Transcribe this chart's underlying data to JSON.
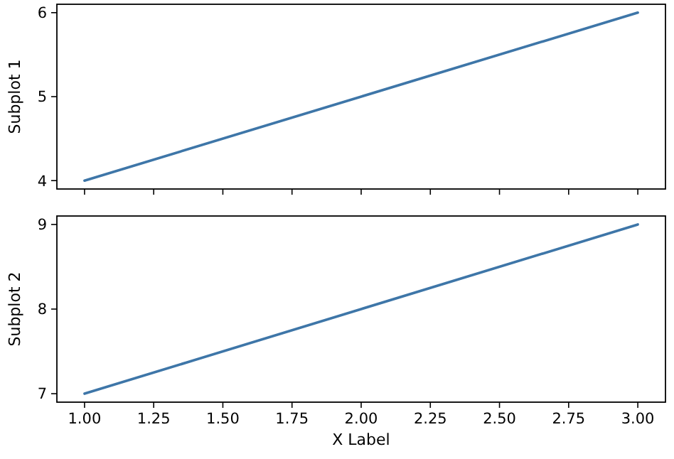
{
  "chart_data": [
    {
      "type": "line",
      "ylabel": "Subplot 1",
      "x": [
        1,
        2,
        3
      ],
      "series": [
        {
          "color": "#3e76a8",
          "values": [
            4,
            5,
            6
          ]
        }
      ],
      "xlim": [
        0.9,
        3.1
      ],
      "ylim": [
        3.9,
        6.1
      ],
      "xticks": [
        {
          "value": 1,
          "label": null
        },
        {
          "value": 1.25,
          "label": null
        },
        {
          "value": 1.5,
          "label": null
        },
        {
          "value": 1.75,
          "label": null
        },
        {
          "value": 2,
          "label": null
        },
        {
          "value": 2.25,
          "label": null
        },
        {
          "value": 2.5,
          "label": null
        },
        {
          "value": 2.75,
          "label": null
        },
        {
          "value": 3,
          "label": null
        }
      ],
      "yticks": [
        4,
        5,
        6
      ],
      "tick_labels": "y"
    },
    {
      "type": "line",
      "ylabel": "Subplot 2",
      "xlabel": "X Label",
      "x": [
        1,
        2,
        3
      ],
      "series": [
        {
          "color": "#3e76a8",
          "values": [
            7,
            8,
            9
          ]
        }
      ],
      "xlim": [
        0.9,
        3.1
      ],
      "ylim": [
        6.9,
        9.1
      ],
      "xticks": [
        {
          "value": 1,
          "label": "1.00"
        },
        {
          "value": 1.25,
          "label": "1.25"
        },
        {
          "value": 1.5,
          "label": "1.50"
        },
        {
          "value": 1.75,
          "label": "1.75"
        },
        {
          "value": 2,
          "label": "2.00"
        },
        {
          "value": 2.25,
          "label": "2.25"
        },
        {
          "value": 2.5,
          "label": "2.50"
        },
        {
          "value": 2.75,
          "label": "2.75"
        },
        {
          "value": 3,
          "label": "3.00"
        }
      ],
      "yticks": [
        7,
        8,
        9
      ]
    }
  ]
}
